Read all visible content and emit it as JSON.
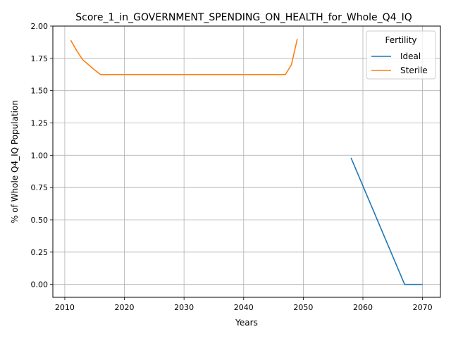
{
  "chart_data": {
    "type": "line",
    "title": "Score_1_in_GOVERNMENT_SPENDING_ON_HEALTH_for_Whole_Q4_IQ",
    "xlabel": "Years",
    "ylabel": "% of Whole Q4_IQ Population",
    "xlim": [
      2008,
      2073
    ],
    "ylim": [
      -0.1,
      2.0
    ],
    "xticks": [
      2010,
      2020,
      2030,
      2040,
      2050,
      2060,
      2070
    ],
    "xtick_labels": [
      "2010",
      "2020",
      "2030",
      "2040",
      "2050",
      "2060",
      "2070"
    ],
    "yticks": [
      0,
      0.25,
      0.5,
      0.75,
      1.0,
      1.25,
      1.5,
      1.75,
      2.0
    ],
    "ytick_labels": [
      "0.00",
      "0.25",
      "0.50",
      "0.75",
      "1.00",
      "1.25",
      "1.50",
      "1.75",
      "2.00"
    ],
    "grid": true,
    "legend": {
      "title": "Fertility",
      "placement": "top-right"
    },
    "series": [
      {
        "name": "Ideal",
        "color": "#1f77b4",
        "x": [
          2058,
          2067,
          2070
        ],
        "y": [
          0.98,
          0.0,
          0.0
        ]
      },
      {
        "name": "Sterile",
        "color": "#ff7f0e",
        "x": [
          2011,
          2012,
          2013,
          2014,
          2015,
          2016,
          2020,
          2030,
          2040,
          2047,
          2048,
          2049
        ],
        "y": [
          1.89,
          1.81,
          1.74,
          1.7,
          1.66,
          1.625,
          1.625,
          1.625,
          1.625,
          1.625,
          1.7,
          1.9
        ]
      }
    ]
  }
}
